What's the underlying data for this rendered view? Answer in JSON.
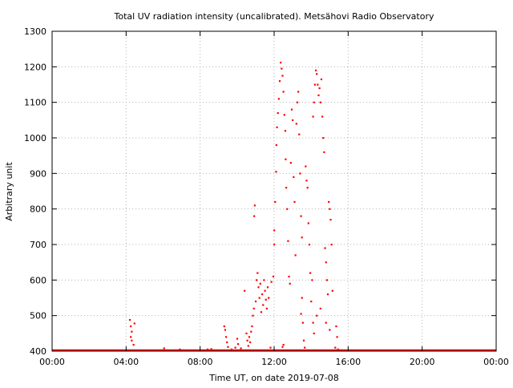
{
  "chart_data": {
    "type": "scatter",
    "title": "Total UV radiation intensity (uncalibrated). Metsähovi Radio Observatory",
    "xlabel": "Time UT, on date 2019-07-08",
    "ylabel": "Arbitrary unit",
    "xlim": [
      0,
      24
    ],
    "ylim": [
      400,
      1300
    ],
    "x_ticks": [
      0,
      4,
      8,
      12,
      16,
      20,
      24
    ],
    "x_tick_labels": [
      "00:00",
      "04:00",
      "08:00",
      "12:00",
      "16:00",
      "20:00",
      "00:00"
    ],
    "y_ticks": [
      400,
      500,
      600,
      700,
      800,
      900,
      1000,
      1100,
      1200,
      1300
    ],
    "y_tick_labels": [
      "400",
      "500",
      "600",
      "700",
      "800",
      "900",
      "1000",
      "1100",
      "1200",
      "1300"
    ],
    "grid": true,
    "point_color": "#ff0000",
    "baseline": 400,
    "series": [
      {
        "points": [
          [
            4.2,
            488
          ],
          [
            4.25,
            470
          ],
          [
            4.3,
            455
          ],
          [
            4.25,
            440
          ],
          [
            4.3,
            430
          ],
          [
            4.45,
            478
          ],
          [
            4.4,
            418
          ],
          [
            6.05,
            408
          ],
          [
            6.9,
            405
          ],
          [
            8.4,
            405
          ],
          [
            8.6,
            406
          ],
          [
            9.3,
            470
          ],
          [
            9.35,
            460
          ],
          [
            9.4,
            440
          ],
          [
            9.45,
            425
          ],
          [
            9.5,
            412
          ],
          [
            9.7,
            405
          ],
          [
            9.9,
            410
          ],
          [
            10.0,
            435
          ],
          [
            10.05,
            420
          ],
          [
            10.2,
            408
          ],
          [
            10.4,
            570
          ],
          [
            10.5,
            450
          ],
          [
            10.55,
            430
          ],
          [
            10.6,
            415
          ],
          [
            10.65,
            440
          ],
          [
            10.7,
            425
          ],
          [
            10.75,
            455
          ],
          [
            10.8,
            470
          ],
          [
            10.85,
            500
          ],
          [
            10.9,
            520
          ],
          [
            10.92,
            780
          ],
          [
            10.95,
            810
          ],
          [
            11.0,
            540
          ],
          [
            11.05,
            600
          ],
          [
            11.1,
            620
          ],
          [
            11.15,
            580
          ],
          [
            11.2,
            550
          ],
          [
            11.25,
            590
          ],
          [
            11.3,
            510
          ],
          [
            11.35,
            560
          ],
          [
            11.4,
            530
          ],
          [
            11.45,
            600
          ],
          [
            11.5,
            570
          ],
          [
            11.55,
            545
          ],
          [
            11.6,
            520
          ],
          [
            11.65,
            580
          ],
          [
            11.7,
            550
          ],
          [
            11.8,
            410
          ],
          [
            11.85,
            595
          ],
          [
            11.95,
            610
          ],
          [
            12.0,
            700
          ],
          [
            12.0,
            740
          ],
          [
            12.05,
            820
          ],
          [
            12.1,
            905
          ],
          [
            12.12,
            980
          ],
          [
            12.15,
            1030
          ],
          [
            12.2,
            1070
          ],
          [
            12.25,
            1110
          ],
          [
            12.3,
            1160
          ],
          [
            12.35,
            1212
          ],
          [
            12.4,
            1195
          ],
          [
            12.45,
            1175
          ],
          [
            12.5,
            1130
          ],
          [
            12.55,
            1065
          ],
          [
            12.6,
            1020
          ],
          [
            12.62,
            940
          ],
          [
            12.65,
            860
          ],
          [
            12.7,
            800
          ],
          [
            12.75,
            710
          ],
          [
            12.8,
            610
          ],
          [
            12.85,
            590
          ],
          [
            12.9,
            930
          ],
          [
            12.95,
            1080
          ],
          [
            13.0,
            1050
          ],
          [
            13.05,
            890
          ],
          [
            13.1,
            820
          ],
          [
            13.15,
            670
          ],
          [
            13.2,
            1040
          ],
          [
            13.25,
            1100
          ],
          [
            13.3,
            1130
          ],
          [
            13.35,
            1010
          ],
          [
            13.4,
            900
          ],
          [
            13.45,
            780
          ],
          [
            13.5,
            720
          ],
          [
            12.45,
            412
          ],
          [
            12.5,
            418
          ],
          [
            12.55,
            402
          ],
          [
            13.45,
            505
          ],
          [
            13.5,
            550
          ],
          [
            13.55,
            480
          ],
          [
            13.6,
            430
          ],
          [
            13.65,
            410
          ],
          [
            13.7,
            920
          ],
          [
            13.75,
            880
          ],
          [
            13.8,
            860
          ],
          [
            13.85,
            760
          ],
          [
            13.9,
            700
          ],
          [
            13.95,
            620
          ],
          [
            14.0,
            540
          ],
          [
            14.05,
            600
          ],
          [
            14.1,
            1060
          ],
          [
            14.15,
            1100
          ],
          [
            14.2,
            1150
          ],
          [
            14.25,
            1190
          ],
          [
            14.3,
            1180
          ],
          [
            14.35,
            1150
          ],
          [
            14.4,
            1120
          ],
          [
            14.45,
            1140
          ],
          [
            14.5,
            1100
          ],
          [
            14.55,
            1165
          ],
          [
            14.6,
            1060
          ],
          [
            14.65,
            1000
          ],
          [
            14.7,
            960
          ],
          [
            14.75,
            690
          ],
          [
            14.8,
            650
          ],
          [
            14.85,
            600
          ],
          [
            14.9,
            560
          ],
          [
            14.95,
            820
          ],
          [
            15.0,
            800
          ],
          [
            15.05,
            770
          ],
          [
            15.1,
            700
          ],
          [
            15.15,
            570
          ],
          [
            14.1,
            480
          ],
          [
            14.15,
            450
          ],
          [
            14.3,
            500
          ],
          [
            14.5,
            520
          ],
          [
            14.8,
            480
          ],
          [
            15.0,
            460
          ],
          [
            15.3,
            410
          ],
          [
            15.35,
            470
          ],
          [
            15.4,
            440
          ],
          [
            15.45,
            405
          ]
        ]
      }
    ]
  }
}
